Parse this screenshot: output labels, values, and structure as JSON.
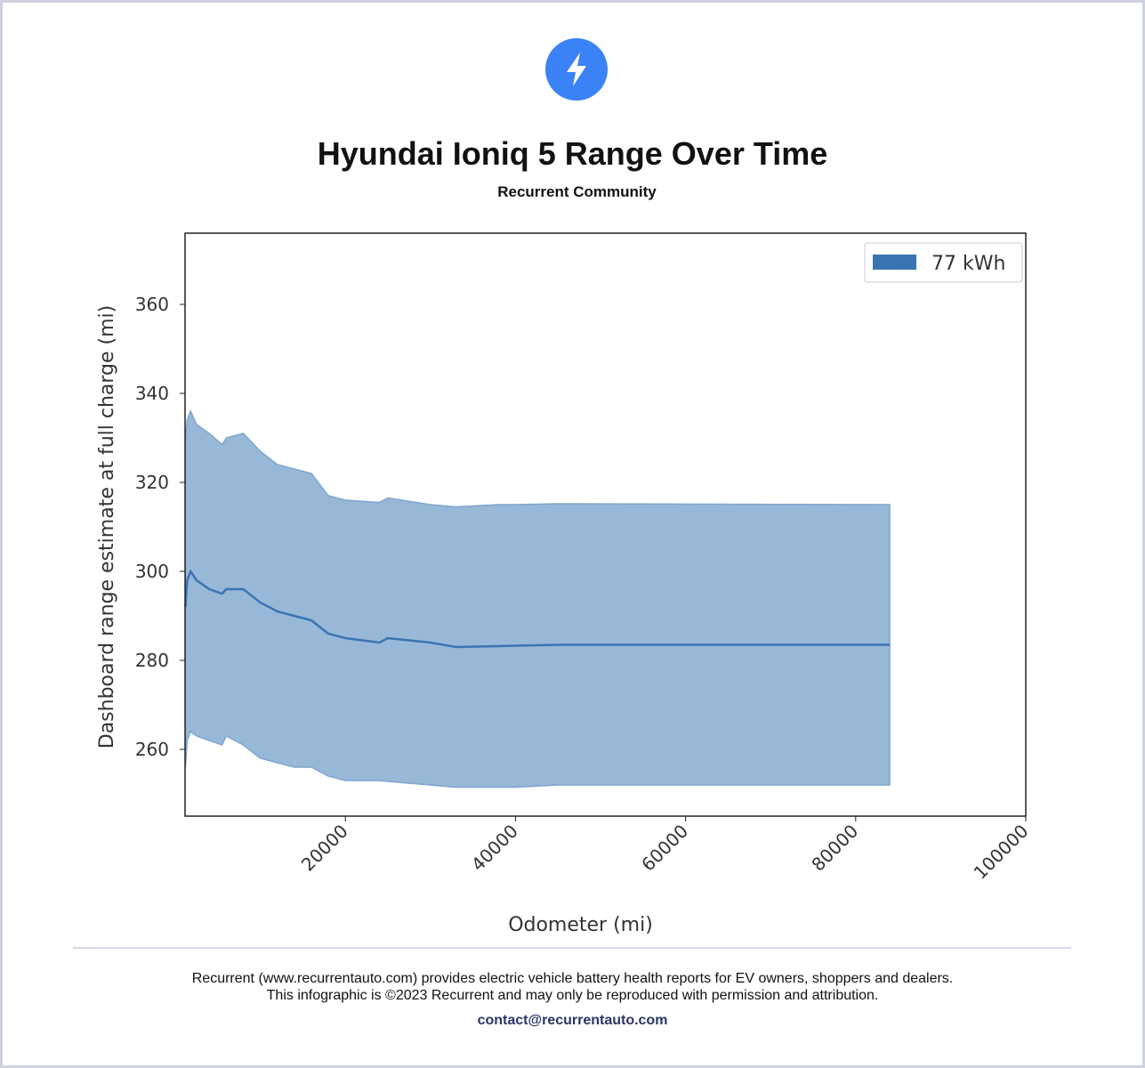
{
  "header": {
    "title": "Hyundai Ioniq 5 Range Over Time",
    "subtitle": "Recurrent Community",
    "logo_icon": "lightning-bolt-icon",
    "brand_color": "#3b82f6"
  },
  "chart_data": {
    "type": "area",
    "title": "",
    "xlabel": "Odometer (mi)",
    "ylabel": "Dashboard range estimate at full charge (mi)",
    "xlim": [
      1150,
      100000
    ],
    "ylim": [
      245,
      376
    ],
    "xticks": [
      20000,
      40000,
      60000,
      80000,
      100000
    ],
    "xtick_labels": [
      "20000",
      "40000",
      "60000",
      "80000",
      "100000"
    ],
    "yticks": [
      260,
      280,
      300,
      320,
      340,
      360
    ],
    "ytick_labels": [
      "260",
      "280",
      "300",
      "320",
      "340",
      "360"
    ],
    "grid": false,
    "legend_position": "top-right",
    "series": [
      {
        "name": "77 kWh",
        "color": "#3a74b0",
        "fill_color": "#98b8d8",
        "x": [
          1200,
          1400,
          1800,
          2500,
          4000,
          5500,
          6000,
          8000,
          10000,
          12000,
          14000,
          16000,
          18000,
          20000,
          24000,
          25000,
          30000,
          33000,
          38000,
          40000,
          45000,
          84000
        ],
        "lower": [
          256,
          262,
          264,
          263,
          262,
          261,
          263,
          261,
          258,
          257,
          256,
          256,
          254,
          253,
          253,
          252.8,
          252,
          251.5,
          251.5,
          251.5,
          252,
          252
        ],
        "mean": [
          292,
          298,
          300,
          298,
          296,
          295,
          296,
          296,
          293,
          291,
          290,
          289,
          286,
          285,
          284,
          285,
          284,
          283,
          283.2,
          283.3,
          283.5,
          283.5
        ],
        "upper": [
          330,
          334,
          336,
          333,
          331,
          328.5,
          330,
          331,
          327,
          324,
          323,
          322,
          317,
          316,
          315.5,
          316.5,
          315,
          314.5,
          315,
          315,
          315.2,
          315
        ]
      }
    ]
  },
  "footer": {
    "line1": "Recurrent (www.recurrentauto.com) provides electric vehicle battery health reports for EV owners, shoppers and dealers.",
    "line2": "This infographic is ©2023 Recurrent and may only be reproduced with permission and attribution.",
    "email": "contact@recurrentauto.com"
  }
}
